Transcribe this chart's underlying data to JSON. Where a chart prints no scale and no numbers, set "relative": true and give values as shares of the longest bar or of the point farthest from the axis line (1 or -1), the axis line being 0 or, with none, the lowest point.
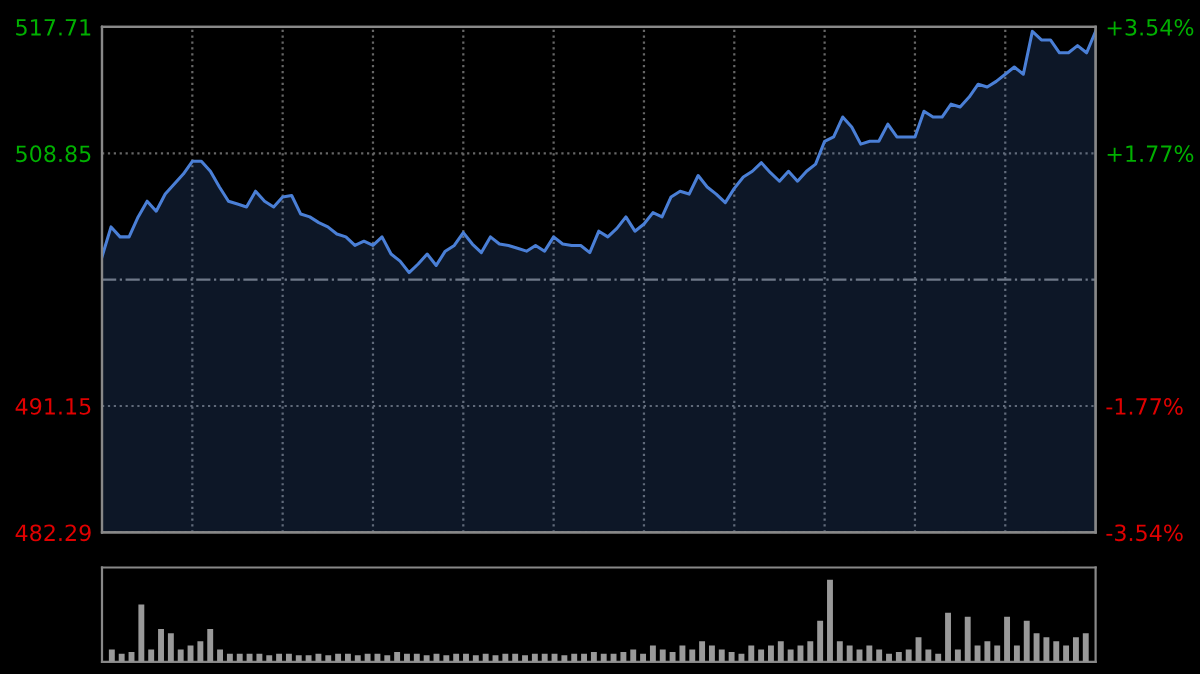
{
  "chart_data": [
    {
      "type": "area",
      "categories": [
        null,
        null,
        null,
        null,
        null,
        null,
        null,
        null,
        null,
        null,
        null,
        null,
        null,
        null,
        null,
        null,
        null,
        null,
        null,
        null,
        null,
        null,
        null,
        null,
        null,
        null,
        null,
        null,
        null,
        null,
        null,
        null,
        null,
        null,
        null,
        null,
        null,
        null,
        null,
        null,
        null,
        null,
        null,
        null,
        null,
        null,
        null,
        null,
        null,
        null,
        null,
        null,
        null,
        null,
        null,
        null,
        null,
        null,
        null,
        null,
        null,
        null,
        null,
        null,
        null,
        null,
        null,
        null,
        null,
        null,
        null,
        null,
        null,
        null,
        null,
        null,
        null,
        null,
        null,
        null,
        null,
        null,
        null,
        null,
        null,
        null,
        null,
        null,
        null,
        null,
        null,
        null,
        null,
        null,
        null,
        null,
        null,
        null,
        null,
        null,
        null,
        null,
        null,
        null,
        null,
        null,
        null,
        null,
        null,
        null,
        null
      ],
      "series": [
        {
          "color": "#4a7fd6",
          "values": [
            501.6,
            503.7,
            503.0,
            503.0,
            504.4,
            505.5,
            504.8,
            506.0,
            506.7,
            507.4,
            508.3,
            508.3,
            507.6,
            506.5,
            505.5,
            505.3,
            505.1,
            506.2,
            505.5,
            505.1,
            505.8,
            505.9,
            504.6,
            504.4,
            504.0,
            503.7,
            503.2,
            503.0,
            502.4,
            502.7,
            502.4,
            503.0,
            501.8,
            501.3,
            500.5,
            501.1,
            501.8,
            501.0,
            502.0,
            502.4,
            503.3,
            502.5,
            501.9,
            503.0,
            502.5,
            502.4,
            502.2,
            502.0,
            502.4,
            502.0,
            503.0,
            502.5,
            502.4,
            502.4,
            501.9,
            503.4,
            503.0,
            503.6,
            504.4,
            503.4,
            503.9,
            504.7,
            504.4,
            505.8,
            506.2,
            506.0,
            507.3,
            506.5,
            506.0,
            505.4,
            506.4,
            507.2,
            507.6,
            508.2,
            507.5,
            506.9,
            507.6,
            506.9,
            507.6,
            508.1,
            509.7,
            510.0,
            511.4,
            510.7,
            509.5,
            509.7,
            509.7,
            510.9,
            510.0,
            510.0,
            510.0,
            511.8,
            511.4,
            511.4,
            512.3,
            512.1,
            512.8,
            513.7,
            513.5,
            513.9,
            514.4,
            514.9,
            514.4,
            517.4,
            516.8,
            516.8,
            515.9,
            515.9,
            516.4,
            515.9,
            517.4
          ]
        }
      ],
      "ylim": [
        482.29,
        517.71
      ],
      "yticks": [
        482.29,
        491.15,
        508.85,
        517.71
      ],
      "y2lim": [
        -3.54,
        3.54
      ],
      "y2ticks": [
        {
          "value": -3.54,
          "label": "-3.54%"
        },
        {
          "value": -1.77,
          "label": "-1.77%"
        },
        {
          "value": 1.77,
          "label": "+1.77%"
        },
        {
          "value": 3.54,
          "label": "+3.54%"
        }
      ],
      "ref_lines": [
        {
          "axis": "y",
          "value": 500,
          "color": "#777777",
          "line_style": "dashdot"
        }
      ],
      "grid": true,
      "tick_labels": "y"
    },
    {
      "type": "bar",
      "relative": true,
      "color": "#999999",
      "tick_labels": false,
      "categories": [
        null,
        null,
        null,
        null,
        null,
        null,
        null,
        null,
        null,
        null,
        null,
        null,
        null,
        null,
        null,
        null,
        null,
        null,
        null,
        null,
        null,
        null,
        null,
        null,
        null,
        null,
        null,
        null,
        null,
        null,
        null,
        null,
        null,
        null,
        null,
        null,
        null,
        null,
        null,
        null,
        null,
        null,
        null,
        null,
        null,
        null,
        null,
        null,
        null,
        null,
        null,
        null,
        null,
        null,
        null,
        null,
        null,
        null,
        null,
        null,
        null,
        null,
        null,
        null,
        null,
        null,
        null,
        null,
        null,
        null,
        null,
        null,
        null,
        null,
        null,
        null,
        null,
        null,
        null,
        null,
        null,
        null,
        null,
        null,
        null,
        null,
        null,
        null,
        null,
        null,
        null,
        null,
        null,
        null,
        null,
        null,
        null,
        null,
        null,
        null
      ],
      "values": [
        0.15,
        0.1,
        0.12,
        0.7,
        0.15,
        0.4,
        0.35,
        0.15,
        0.2,
        0.25,
        0.4,
        0.15,
        0.1,
        0.1,
        0.1,
        0.1,
        0.08,
        0.1,
        0.1,
        0.08,
        0.08,
        0.1,
        0.08,
        0.1,
        0.1,
        0.08,
        0.1,
        0.1,
        0.08,
        0.12,
        0.1,
        0.1,
        0.08,
        0.1,
        0.08,
        0.1,
        0.1,
        0.08,
        0.1,
        0.08,
        0.1,
        0.1,
        0.08,
        0.1,
        0.1,
        0.1,
        0.08,
        0.1,
        0.1,
        0.12,
        0.1,
        0.1,
        0.12,
        0.15,
        0.1,
        0.2,
        0.15,
        0.12,
        0.2,
        0.15,
        0.25,
        0.2,
        0.15,
        0.12,
        0.1,
        0.2,
        0.15,
        0.2,
        0.25,
        0.15,
        0.2,
        0.25,
        0.5,
        1.0,
        0.25,
        0.2,
        0.15,
        0.2,
        0.15,
        0.1,
        0.12,
        0.15,
        0.3,
        0.15,
        0.1,
        0.6,
        0.15,
        0.55,
        0.2,
        0.25,
        0.2,
        0.55,
        0.2,
        0.5,
        0.35,
        0.3,
        0.25,
        0.2,
        0.3,
        0.35
      ]
    }
  ]
}
